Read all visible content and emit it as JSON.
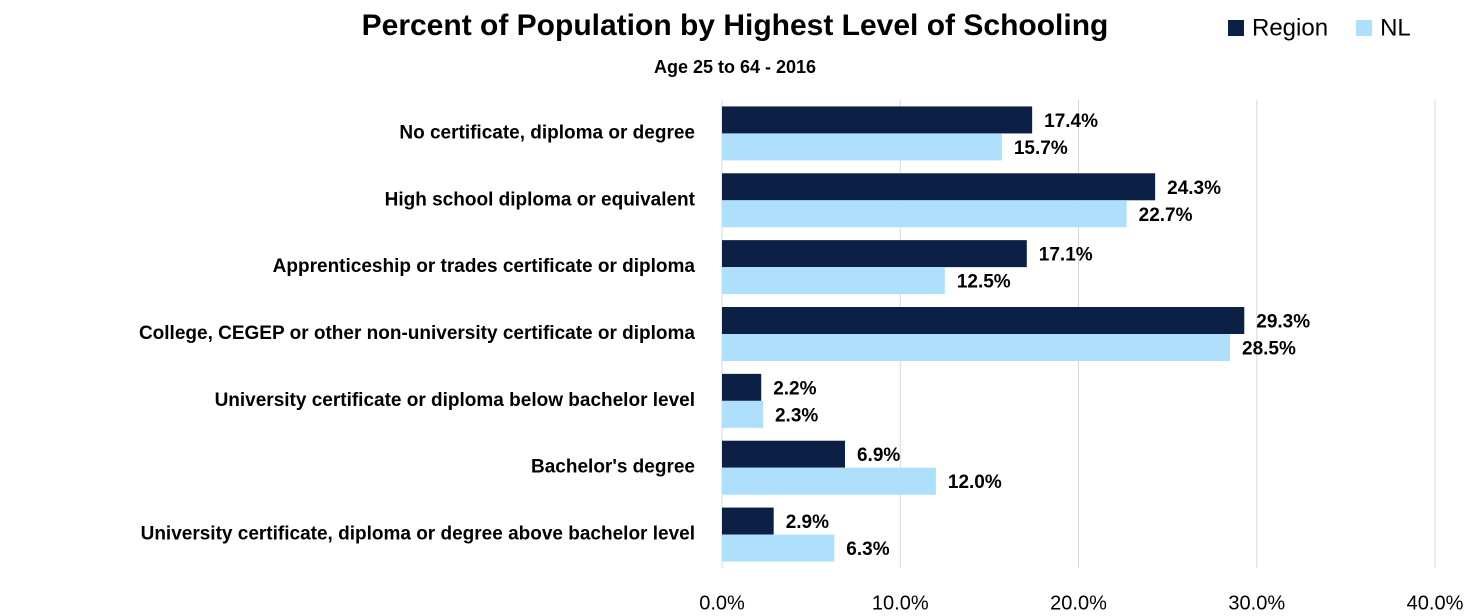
{
  "chart_data": {
    "type": "barh",
    "title": "Percent of Population by Highest Level of Schooling",
    "subtitle": "Age 25 to 64 - 2016",
    "categories": [
      "No certificate, diploma or degree",
      "High school diploma or equivalent",
      "Apprenticeship or trades certificate or diploma",
      "College, CEGEP or other non-university certificate or diploma",
      "University certificate or diploma below bachelor level",
      "Bachelor's degree",
      "University certificate, diploma or degree above bachelor level"
    ],
    "series": [
      {
        "name": "Region",
        "color": "#0c1f44",
        "values": [
          17.4,
          24.3,
          17.1,
          29.3,
          2.2,
          6.9,
          2.9
        ],
        "value_labels": [
          "17.4%",
          "24.3%",
          "17.1%",
          "29.3%",
          "2.2%",
          "6.9%",
          "2.9%"
        ]
      },
      {
        "name": "NL",
        "color": "#aee0fb",
        "values": [
          15.7,
          22.7,
          12.5,
          28.5,
          2.3,
          12.0,
          6.3
        ],
        "value_labels": [
          "15.7%",
          "22.7%",
          "12.5%",
          "28.5%",
          "2.3%",
          "12.0%",
          "6.3%"
        ]
      }
    ],
    "xlim": [
      0,
      40
    ],
    "xticks": [
      {
        "value": 0,
        "label": "0.0%"
      },
      {
        "value": 10,
        "label": "10.0%"
      },
      {
        "value": 20,
        "label": "20.0%"
      },
      {
        "value": 30,
        "label": "30.0%"
      },
      {
        "value": 40,
        "label": "40.0%"
      }
    ],
    "grid": true,
    "legend": "top-right"
  }
}
